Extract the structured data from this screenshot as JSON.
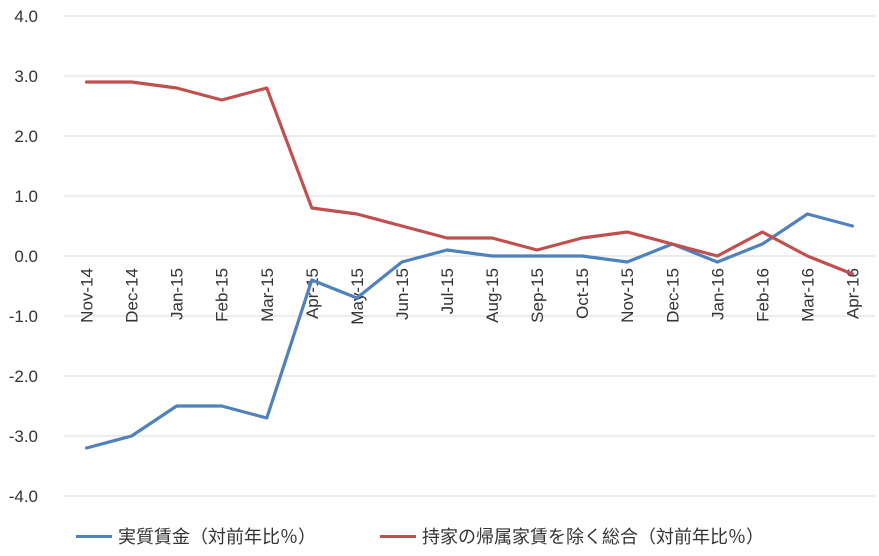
{
  "chart_data": {
    "type": "line",
    "categories": [
      "Nov-14",
      "Dec-14",
      "Jan-15",
      "Feb-15",
      "Mar-15",
      "Apr-15",
      "May-15",
      "Jun-15",
      "Jul-15",
      "Aug-15",
      "Sep-15",
      "Oct-15",
      "Nov-15",
      "Dec-15",
      "Jan-16",
      "Feb-16",
      "Mar-16",
      "Apr-16"
    ],
    "series": [
      {
        "name": "実質賃金（対前年比％）",
        "color": "#4f81bd",
        "values": [
          -3.2,
          -3.0,
          -2.5,
          -2.5,
          -2.7,
          -0.4,
          -0.7,
          -0.1,
          0.1,
          0.0,
          0.0,
          0.0,
          -0.1,
          0.2,
          -0.1,
          0.2,
          0.7,
          0.5
        ]
      },
      {
        "name": "持家の帰属家賃を除く総合（対前年比％）",
        "color": "#c0504d",
        "values": [
          2.9,
          2.9,
          2.8,
          2.6,
          2.8,
          0.8,
          0.7,
          0.5,
          0.3,
          0.3,
          0.1,
          0.3,
          0.4,
          0.2,
          0.0,
          0.4,
          0.0,
          -0.3
        ]
      }
    ],
    "ylim": [
      -4.0,
      4.0
    ],
    "yticks": [
      "4.0",
      "3.0",
      "2.0",
      "1.0",
      "0.0",
      "-1.0",
      "-2.0",
      "-3.0",
      "-4.0"
    ],
    "grid": true,
    "legend_position": "bottom"
  }
}
